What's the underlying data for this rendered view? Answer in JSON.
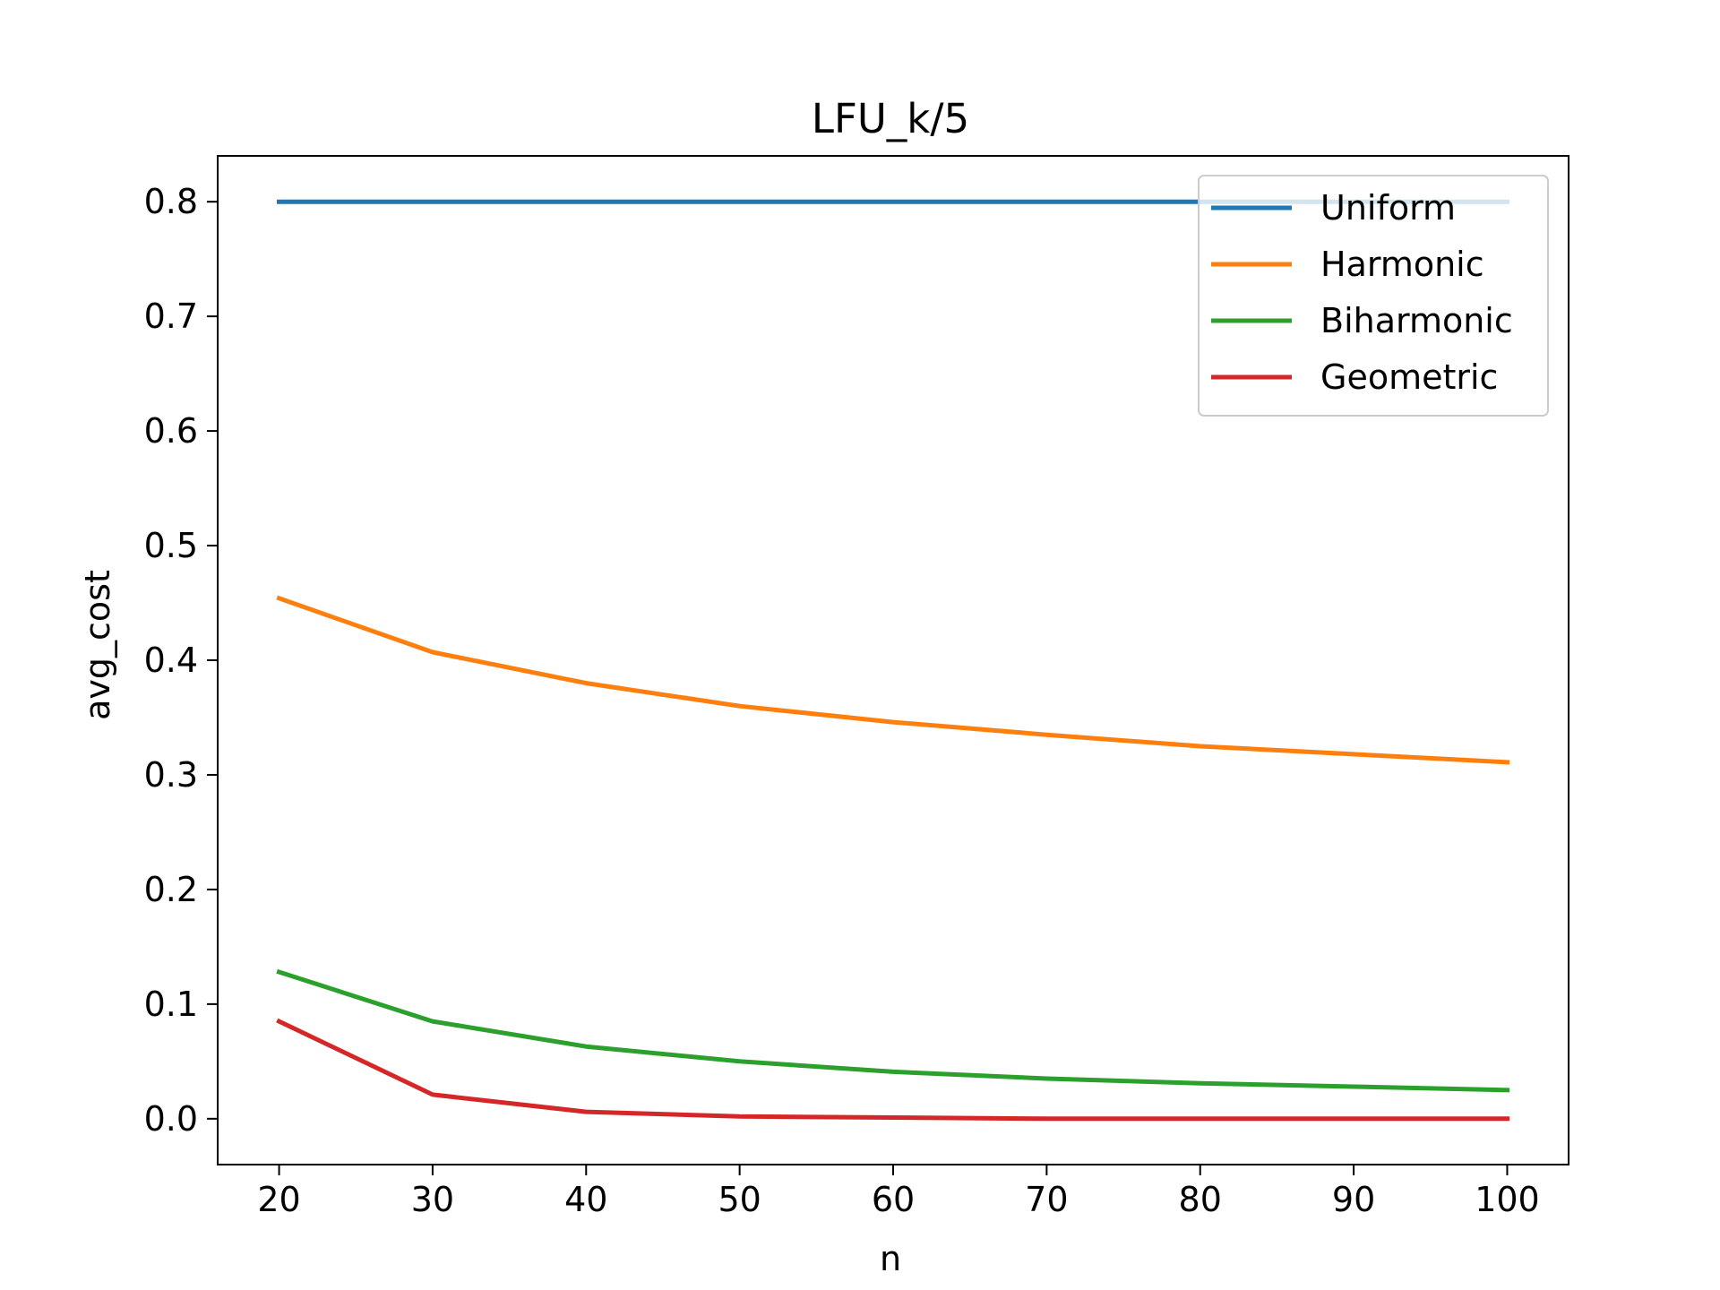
{
  "chart_data": {
    "type": "line",
    "title": "LFU_k/5",
    "xlabel": "n",
    "ylabel": "avg_cost",
    "x": [
      20,
      30,
      40,
      50,
      60,
      70,
      80,
      90,
      100
    ],
    "xlim": [
      16,
      104
    ],
    "ylim": [
      -0.04,
      0.84
    ],
    "xticks": [
      20,
      30,
      40,
      50,
      60,
      70,
      80,
      90,
      100
    ],
    "xtick_labels": [
      "20",
      "30",
      "40",
      "50",
      "60",
      "70",
      "80",
      "90",
      "100"
    ],
    "yticks": [
      0.0,
      0.1,
      0.2,
      0.3,
      0.4,
      0.5,
      0.6,
      0.7,
      0.8
    ],
    "ytick_labels": [
      "0.0",
      "0.1",
      "0.2",
      "0.3",
      "0.4",
      "0.5",
      "0.6",
      "0.7",
      "0.8"
    ],
    "grid": false,
    "legend_position": "top-right",
    "series": [
      {
        "name": "Uniform",
        "color": "#1f77b4",
        "values": [
          0.8,
          0.8,
          0.8,
          0.8,
          0.8,
          0.8,
          0.8,
          0.8,
          0.8
        ]
      },
      {
        "name": "Harmonic",
        "color": "#ff7f0e",
        "values": [
          0.454,
          0.407,
          0.38,
          0.36,
          0.346,
          0.335,
          0.325,
          0.318,
          0.311
        ]
      },
      {
        "name": "Biharmonic",
        "color": "#2ca02c",
        "values": [
          0.128,
          0.085,
          0.063,
          0.05,
          0.041,
          0.035,
          0.031,
          0.028,
          0.025
        ]
      },
      {
        "name": "Geometric",
        "color": "#d62728",
        "values": [
          0.085,
          0.021,
          0.006,
          0.002,
          0.001,
          0.0,
          0.0,
          0.0,
          0.0
        ]
      }
    ]
  }
}
